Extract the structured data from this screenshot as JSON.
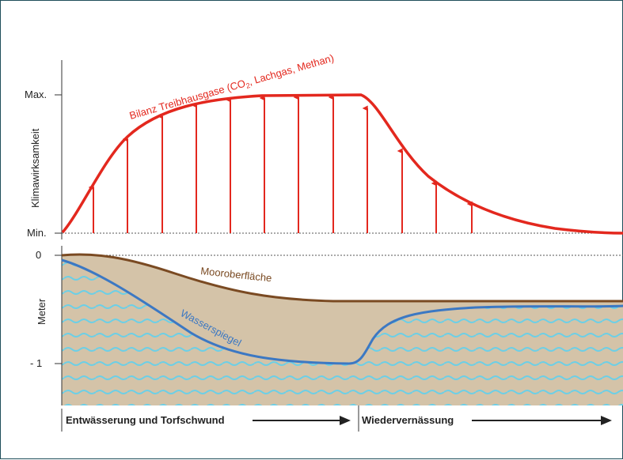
{
  "upper_panel": {
    "y_axis_title": "Klimawirksamkeit",
    "tick_max": "Max.",
    "tick_min": "Min.",
    "curve_label_prefix": "Bilanz Treibhausgase (CO",
    "curve_label_sub": "2",
    "curve_label_suffix": ", Lachgas, Methan)",
    "curve_color": "#e3281e"
  },
  "lower_panel": {
    "y_axis_title": "Meter",
    "tick_zero": "0",
    "tick_minus_one": "- 1",
    "surface_label": "Mooroberfläche",
    "surface_color": "#7a4a22",
    "water_label": "Wasserspiegel",
    "water_color": "#3c78c3",
    "peat_color": "#d4c3a8",
    "wave_color": "#6ccfe6"
  },
  "phases": {
    "phase1": "Entwässerung und Torfschwund",
    "phase2": "Wiedervernässung"
  }
}
